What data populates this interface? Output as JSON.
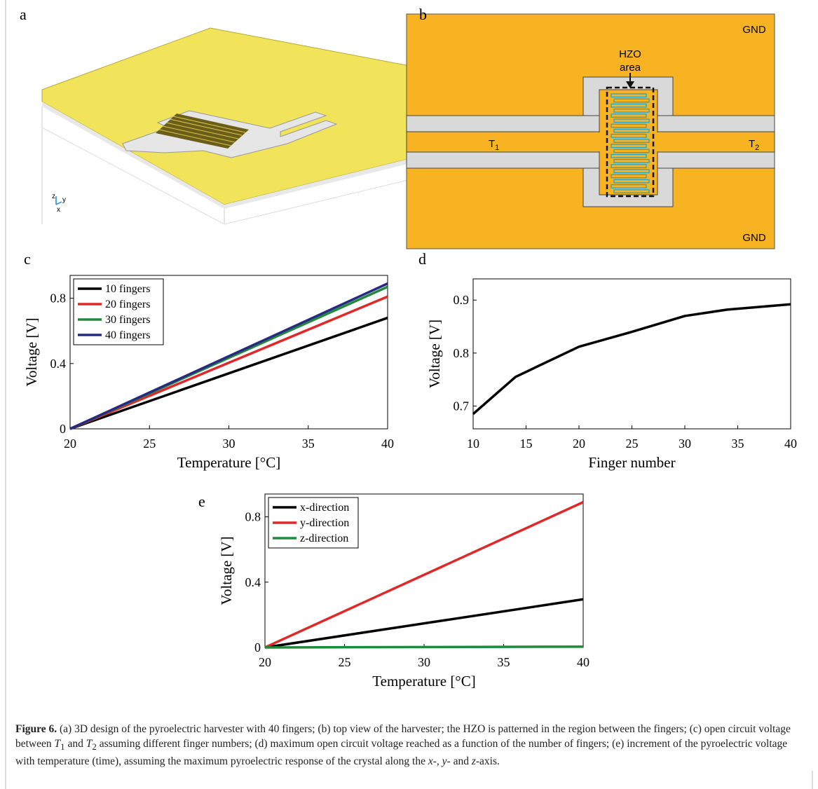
{
  "panel_labels": [
    "a",
    "b",
    "c",
    "d",
    "e"
  ],
  "diagram_a": {
    "axis_labels": [
      "z",
      "y",
      "x"
    ]
  },
  "diagram_b": {
    "hzo_label": [
      "HZO",
      "area"
    ],
    "gnd_labels": [
      "GND",
      "GND"
    ],
    "terminals": [
      {
        "name": "T",
        "sub": "1"
      },
      {
        "name": "T",
        "sub": "2"
      }
    ]
  },
  "chart_data": [
    {
      "type": "line",
      "xlabel": "Temperature [°C]",
      "ylabel": "Voltage [V]",
      "x": [
        20,
        40
      ],
      "xlim": [
        20,
        40
      ],
      "xticks": [
        20,
        25,
        30,
        35,
        40
      ],
      "ylim": [
        0,
        0.94
      ],
      "yticks": [
        0,
        0.4,
        0.8
      ],
      "legend": "upper-left",
      "series": [
        {
          "name": "10 fingers",
          "color": "#000000",
          "values": [
            0,
            0.68
          ]
        },
        {
          "name": "20 fingers",
          "color": "#e02828",
          "values": [
            0,
            0.81
          ]
        },
        {
          "name": "30 fingers",
          "color": "#1e8a3a",
          "values": [
            0,
            0.87
          ]
        },
        {
          "name": "40 fingers",
          "color": "#262a80",
          "values": [
            0,
            0.89
          ]
        }
      ]
    },
    {
      "type": "line",
      "xlabel": "Finger number",
      "ylabel": "Voltage [V]",
      "x": [
        10,
        14,
        20,
        25,
        30,
        34,
        40
      ],
      "xlim": [
        10,
        40
      ],
      "xticks": [
        10,
        15,
        20,
        25,
        30,
        35,
        40
      ],
      "ylim": [
        0.657,
        0.94
      ],
      "yticks": [
        0.7,
        0.8,
        0.9
      ],
      "color": "#000000",
      "values": [
        0.685,
        0.755,
        0.812,
        0.84,
        0.87,
        0.882,
        0.892
      ]
    },
    {
      "type": "line",
      "xlabel": "Temperature [°C]",
      "ylabel": "Voltage [V]",
      "x": [
        20,
        40
      ],
      "xlim": [
        20,
        40
      ],
      "xticks": [
        20,
        25,
        30,
        35,
        40
      ],
      "ylim": [
        0,
        0.94
      ],
      "yticks": [
        0,
        0.4,
        0.8
      ],
      "legend": "upper-left",
      "series": [
        {
          "name": "x-direction",
          "color": "#000000",
          "values": [
            0,
            0.295
          ]
        },
        {
          "name": "y-direction",
          "color": "#e02828",
          "values": [
            0,
            0.89
          ]
        },
        {
          "name": "z-direction",
          "color": "#1e8a3a",
          "values": [
            0,
            0.005
          ]
        }
      ]
    }
  ],
  "caption": {
    "label": "Figure 6.",
    "segments": [
      " (a) 3D design of the pyroelectric harvester with 40 fingers; (b) top view of the harvester; the HZO is patterned in the region between the fingers; (c) open circuit voltage between ",
      "T",
      "1",
      " and ",
      "T",
      "2",
      " assuming different finger numbers; (d) maximum open circuit voltage reached as a function of the number of fingers; (e) increment of the pyroelectric voltage with temperature (time), assuming the maximum pyroelectric response of the crystal along the ",
      "x",
      "-, ",
      "y",
      "- and ",
      "z",
      "-axis."
    ]
  }
}
